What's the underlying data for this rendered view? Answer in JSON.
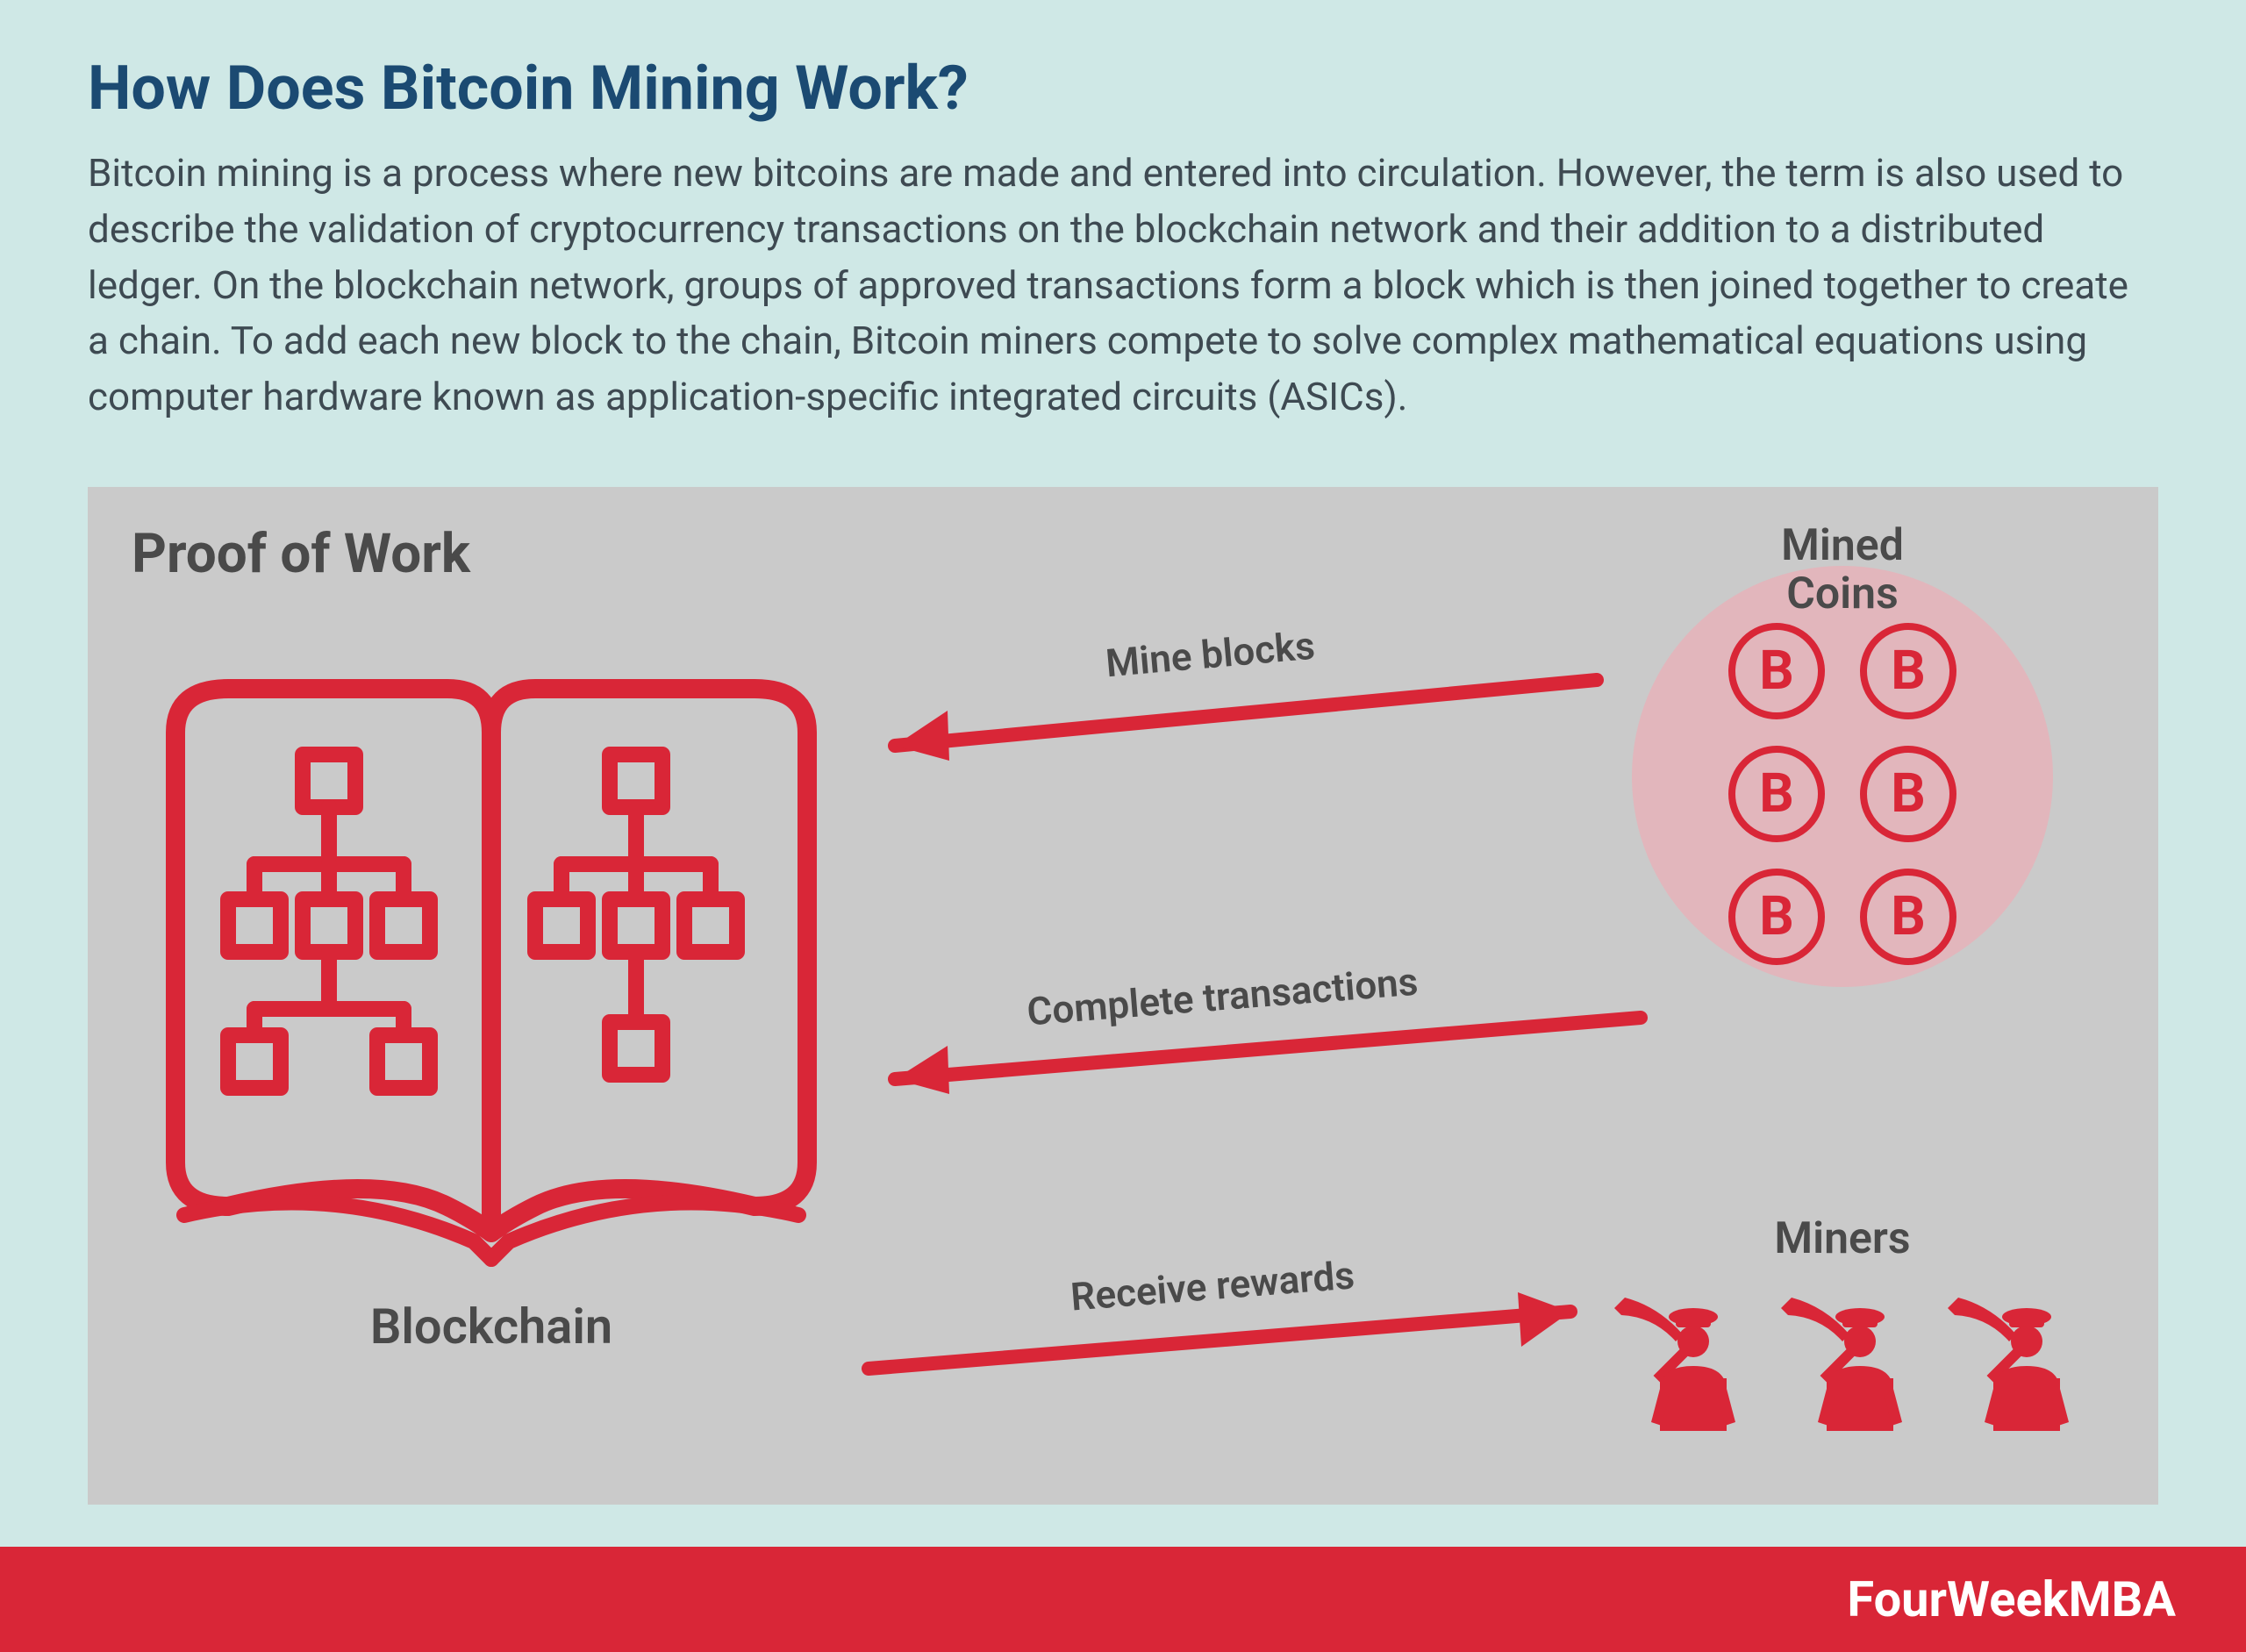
{
  "colors": {
    "page_bg": "#cfe8e6",
    "title": "#1b4a72",
    "body_text": "#3e4a52",
    "diagram_bg": "#cacaca",
    "diagram_label": "#4a4a4a",
    "accent": "#d92637",
    "coins_circle_bg": "#e2b6bc",
    "footer_bg": "#d92637",
    "footer_text": "#ffffff"
  },
  "header": {
    "title": "How Does Bitcoin Mining Work?",
    "description": "Bitcoin mining is a process where new bitcoins are made and entered into circulation. However, the term is also used to describe the validation of cryptocurrency transactions on the blockchain network and their addition to a distributed ledger. On the blockchain network, groups of approved transactions form a block which is then joined together to create a chain. To add each new block to the chain, Bitcoin miners compete to solve complex mathematical equations using computer hardware known as application-specific integrated circuits (ASICs)."
  },
  "diagram": {
    "pow_label": "Proof of Work",
    "blockchain_label": "Blockchain",
    "mined_coins_label": "Mined\nCoins",
    "miners_label": "Miners",
    "coin_glyph": "B",
    "coin_count": 6,
    "miner_count": 3,
    "arrows": {
      "mine_blocks": "Mine blocks",
      "complete_transactions": "Complete transactions",
      "receive_rewards": "Receive rewards"
    },
    "stroke_width": 20,
    "arrow_stroke_width": 14
  },
  "footer": {
    "text": "FourWeekMBA"
  }
}
